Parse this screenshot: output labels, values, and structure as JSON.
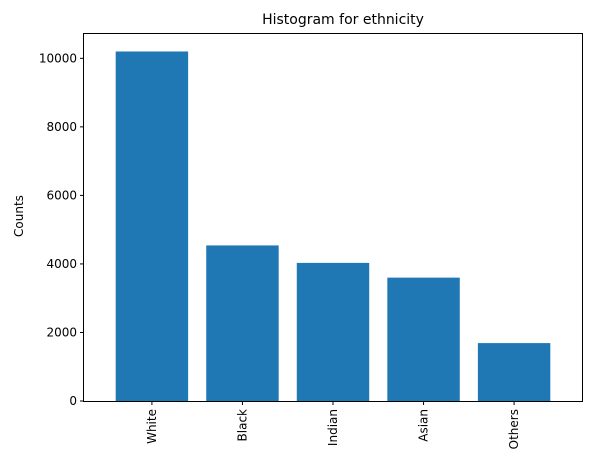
{
  "chart_data": {
    "type": "bar",
    "title": "Histogram for ethnicity",
    "xlabel": "",
    "ylabel": "Counts",
    "categories": [
      "White",
      "Black",
      "Indian",
      "Asian",
      "Others"
    ],
    "values": [
      10200,
      4540,
      4030,
      3600,
      1690
    ],
    "ylim": [
      0,
      10710
    ],
    "yticks": [
      0,
      2000,
      4000,
      6000,
      8000,
      10000
    ],
    "bar_color": "#1f77b4",
    "grid": false,
    "legend": "none"
  }
}
